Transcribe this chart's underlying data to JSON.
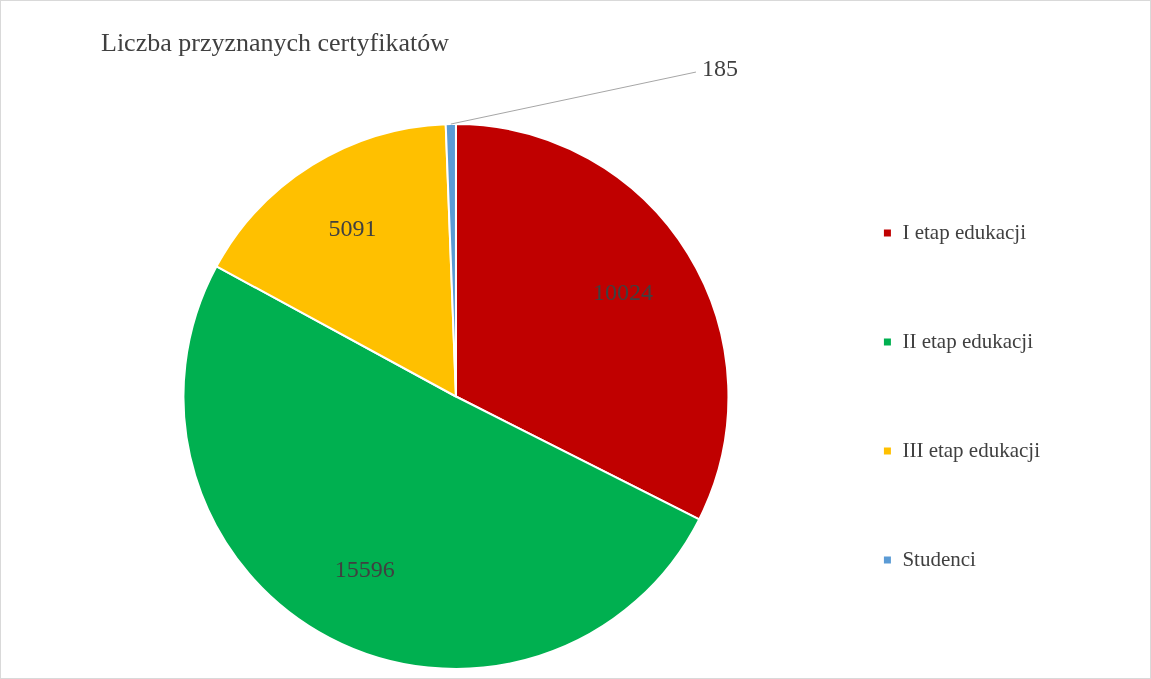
{
  "chart_data": {
    "type": "pie",
    "title": "Liczba przyznanych certyfikatów",
    "categories": [
      "I etap edukacji",
      "II etap edukacji",
      "III etap edukacji",
      "Studenci"
    ],
    "values": [
      10024,
      15596,
      5091,
      185
    ],
    "colors": [
      "#c00000",
      "#00b050",
      "#ffc000",
      "#5b9bd5"
    ],
    "data_labels": true,
    "legend": "right"
  }
}
